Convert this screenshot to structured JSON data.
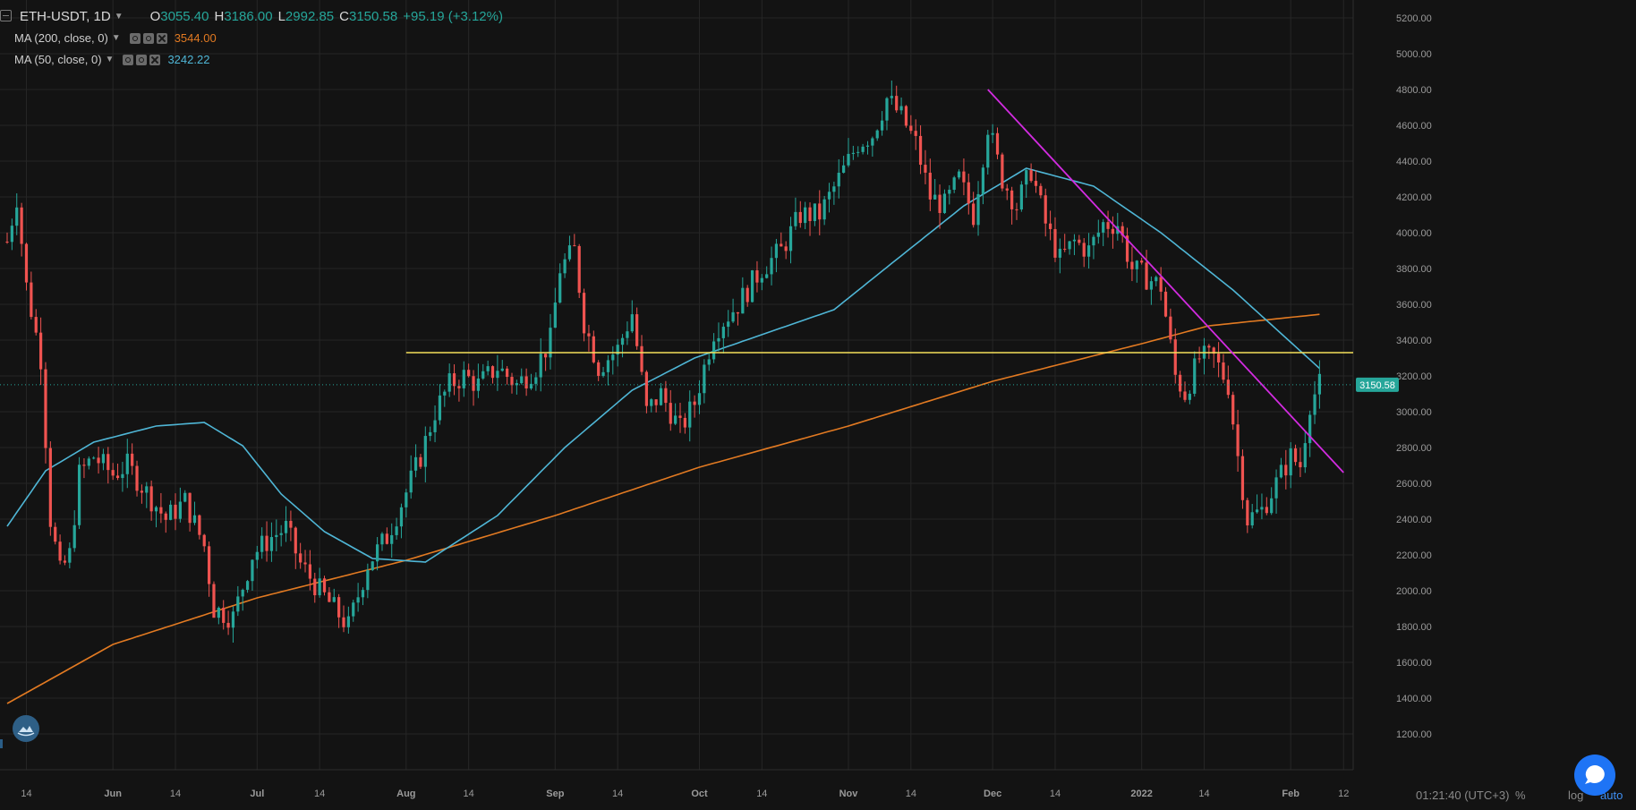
{
  "header": {
    "symbol": "ETH-USDT, 1D",
    "ohlc": {
      "o_key": "O",
      "o": "3055.40",
      "h_key": "H",
      "h": "3186.00",
      "l_key": "L",
      "l": "2992.85",
      "c_key": "C",
      "c": "3150.58",
      "change": "+95.19 (+3.12%)"
    },
    "indicators": [
      {
        "label": "MA (200, close, 0)",
        "value": "3544.00",
        "color": "#e27a22"
      },
      {
        "label": "MA (50, close, 0)",
        "value": "3242.22",
        "color": "#4fb6d6"
      }
    ]
  },
  "footer": {
    "clock": "01:21:40 (UTC+3)",
    "percent_label": "%",
    "log_label": "log",
    "auto_label": "auto"
  },
  "icons": {
    "logo": "cloud-logo-icon",
    "chat": "chat-bubble-icon",
    "collapse": "collapse-icon"
  },
  "chart_data": {
    "type": "candlestick",
    "symbol": "ETH-USDT",
    "interval": "1D",
    "colors": {
      "up": "#26a69a",
      "down": "#ef5350",
      "ma200": "#e27a22",
      "ma50": "#4fb6d6",
      "support": "#f5e05a",
      "trendline": "#d22be0",
      "last_price": "#26a69a",
      "grid": "#2a2a2a",
      "background": "#131313"
    },
    "y_axis": {
      "min": 1000,
      "max": 5300,
      "ticks": [
        "1200.00",
        "1400.00",
        "1600.00",
        "1800.00",
        "2000.00",
        "2200.00",
        "2400.00",
        "2600.00",
        "2800.00",
        "3000.00",
        "3200.00",
        "3400.00",
        "3600.00",
        "3800.00",
        "4000.00",
        "4200.00",
        "4400.00",
        "4600.00",
        "4800.00",
        "5000.00",
        "5200.00"
      ],
      "position": "right"
    },
    "x_axis": {
      "start_date": "2021-05-10",
      "end_date": "2022-02-14",
      "ticks": [
        {
          "date": "2021-05-14",
          "label": "14"
        },
        {
          "date": "2021-06-01",
          "label": "Jun"
        },
        {
          "date": "2021-06-14",
          "label": "14"
        },
        {
          "date": "2021-07-01",
          "label": "Jul"
        },
        {
          "date": "2021-07-14",
          "label": "14"
        },
        {
          "date": "2021-08-01",
          "label": "Aug"
        },
        {
          "date": "2021-08-14",
          "label": "14"
        },
        {
          "date": "2021-09-01",
          "label": "Sep"
        },
        {
          "date": "2021-09-14",
          "label": "14"
        },
        {
          "date": "2021-10-01",
          "label": "Oct"
        },
        {
          "date": "2021-10-14",
          "label": "14"
        },
        {
          "date": "2021-11-01",
          "label": "Nov"
        },
        {
          "date": "2021-11-14",
          "label": "14"
        },
        {
          "date": "2021-12-01",
          "label": "Dec"
        },
        {
          "date": "2021-12-14",
          "label": "14"
        },
        {
          "date": "2022-01-01",
          "label": "2022"
        },
        {
          "date": "2022-01-14",
          "label": "14"
        },
        {
          "date": "2022-02-01",
          "label": "Feb"
        },
        {
          "date": "2022-02-12",
          "label": "12"
        }
      ]
    },
    "grid": true,
    "last_price": {
      "value": 3150.58,
      "label": "3150.58"
    },
    "price_path": [
      [
        "2021-05-10",
        3950
      ],
      [
        "2021-05-12",
        4200
      ],
      [
        "2021-05-14",
        3700
      ],
      [
        "2021-05-17",
        3300
      ],
      [
        "2021-05-19",
        2400
      ],
      [
        "2021-05-21",
        2100
      ],
      [
        "2021-05-23",
        2200
      ],
      [
        "2021-05-25",
        2650
      ],
      [
        "2021-05-28",
        2750
      ],
      [
        "2021-06-01",
        2650
      ],
      [
        "2021-06-04",
        2700
      ],
      [
        "2021-06-08",
        2550
      ],
      [
        "2021-06-12",
        2400
      ],
      [
        "2021-06-16",
        2500
      ],
      [
        "2021-06-20",
        2250
      ],
      [
        "2021-06-22",
        1900
      ],
      [
        "2021-06-26",
        1850
      ],
      [
        "2021-06-30",
        2200
      ],
      [
        "2021-07-04",
        2300
      ],
      [
        "2021-07-07",
        2350
      ],
      [
        "2021-07-10",
        2150
      ],
      [
        "2021-07-14",
        2000
      ],
      [
        "2021-07-17",
        1900
      ],
      [
        "2021-07-20",
        1800
      ],
      [
        "2021-07-24",
        2150
      ],
      [
        "2021-07-28",
        2300
      ],
      [
        "2021-08-01",
        2550
      ],
      [
        "2021-08-04",
        2750
      ],
      [
        "2021-08-07",
        3000
      ],
      [
        "2021-08-10",
        3150
      ],
      [
        "2021-08-13",
        3200
      ],
      [
        "2021-08-16",
        3150
      ],
      [
        "2021-08-20",
        3250
      ],
      [
        "2021-08-24",
        3150
      ],
      [
        "2021-08-28",
        3250
      ],
      [
        "2021-08-31",
        3400
      ],
      [
        "2021-09-02",
        3800
      ],
      [
        "2021-09-05",
        3900
      ],
      [
        "2021-09-07",
        3500
      ],
      [
        "2021-09-10",
        3250
      ],
      [
        "2021-09-14",
        3350
      ],
      [
        "2021-09-17",
        3550
      ],
      [
        "2021-09-20",
        3000
      ],
      [
        "2021-09-23",
        3100
      ],
      [
        "2021-09-27",
        2900
      ],
      [
        "2021-09-30",
        3050
      ],
      [
        "2021-10-04",
        3450
      ],
      [
        "2021-10-09",
        3600
      ],
      [
        "2021-10-14",
        3800
      ],
      [
        "2021-10-18",
        3900
      ],
      [
        "2021-10-22",
        4100
      ],
      [
        "2021-10-26",
        4100
      ],
      [
        "2021-10-30",
        4300
      ],
      [
        "2021-11-03",
        4500
      ],
      [
        "2021-11-06",
        4550
      ],
      [
        "2021-11-09",
        4750
      ],
      [
        "2021-11-12",
        4650
      ],
      [
        "2021-11-15",
        4500
      ],
      [
        "2021-11-18",
        4200
      ],
      [
        "2021-11-21",
        4150
      ],
      [
        "2021-11-24",
        4300
      ],
      [
        "2021-11-27",
        4100
      ],
      [
        "2021-11-30",
        4600
      ],
      [
        "2021-12-03",
        4300
      ],
      [
        "2021-12-06",
        4150
      ],
      [
        "2021-12-09",
        4350
      ],
      [
        "2021-12-12",
        4050
      ],
      [
        "2021-12-15",
        3850
      ],
      [
        "2021-12-18",
        3950
      ],
      [
        "2021-12-21",
        3900
      ],
      [
        "2021-12-24",
        4050
      ],
      [
        "2021-12-27",
        4050
      ],
      [
        "2021-12-30",
        3800
      ],
      [
        "2022-01-02",
        3750
      ],
      [
        "2022-01-05",
        3700
      ],
      [
        "2022-01-08",
        3200
      ],
      [
        "2022-01-10",
        3100
      ],
      [
        "2022-01-13",
        3300
      ],
      [
        "2022-01-16",
        3300
      ],
      [
        "2022-01-19",
        3150
      ],
      [
        "2022-01-21",
        2750
      ],
      [
        "2022-01-23",
        2400
      ],
      [
        "2022-01-26",
        2450
      ],
      [
        "2022-01-29",
        2600
      ],
      [
        "2022-02-01",
        2750
      ],
      [
        "2022-02-03",
        2700
      ],
      [
        "2022-02-05",
        3050
      ],
      [
        "2022-02-07",
        3150
      ]
    ],
    "ma200": [
      [
        "2021-05-10",
        1370
      ],
      [
        "2021-06-01",
        1700
      ],
      [
        "2021-07-01",
        1960
      ],
      [
        "2021-08-01",
        2170
      ],
      [
        "2021-09-01",
        2420
      ],
      [
        "2021-10-01",
        2690
      ],
      [
        "2021-11-01",
        2920
      ],
      [
        "2021-12-01",
        3170
      ],
      [
        "2022-01-01",
        3380
      ],
      [
        "2022-01-15",
        3480
      ],
      [
        "2022-02-07",
        3544
      ]
    ],
    "ma50": [
      [
        "2021-05-10",
        2360
      ],
      [
        "2021-05-18",
        2670
      ],
      [
        "2021-05-28",
        2830
      ],
      [
        "2021-06-10",
        2920
      ],
      [
        "2021-06-20",
        2940
      ],
      [
        "2021-06-28",
        2810
      ],
      [
        "2021-07-06",
        2540
      ],
      [
        "2021-07-15",
        2330
      ],
      [
        "2021-07-25",
        2180
      ],
      [
        "2021-08-05",
        2160
      ],
      [
        "2021-08-20",
        2420
      ],
      [
        "2021-09-03",
        2800
      ],
      [
        "2021-09-17",
        3120
      ],
      [
        "2021-09-30",
        3300
      ],
      [
        "2021-10-15",
        3440
      ],
      [
        "2021-10-29",
        3570
      ],
      [
        "2021-11-11",
        3850
      ],
      [
        "2021-11-25",
        4150
      ],
      [
        "2021-12-08",
        4360
      ],
      [
        "2021-12-22",
        4260
      ],
      [
        "2022-01-05",
        4000
      ],
      [
        "2022-01-20",
        3680
      ],
      [
        "2022-02-07",
        3242.22
      ]
    ],
    "drawings": {
      "support_line": {
        "price": 3330,
        "from": "2021-08-01",
        "to": "2022-02-14"
      },
      "trendline": {
        "from": [
          "2021-11-30",
          4800
        ],
        "to": [
          "2022-02-12",
          2660
        ]
      }
    }
  }
}
